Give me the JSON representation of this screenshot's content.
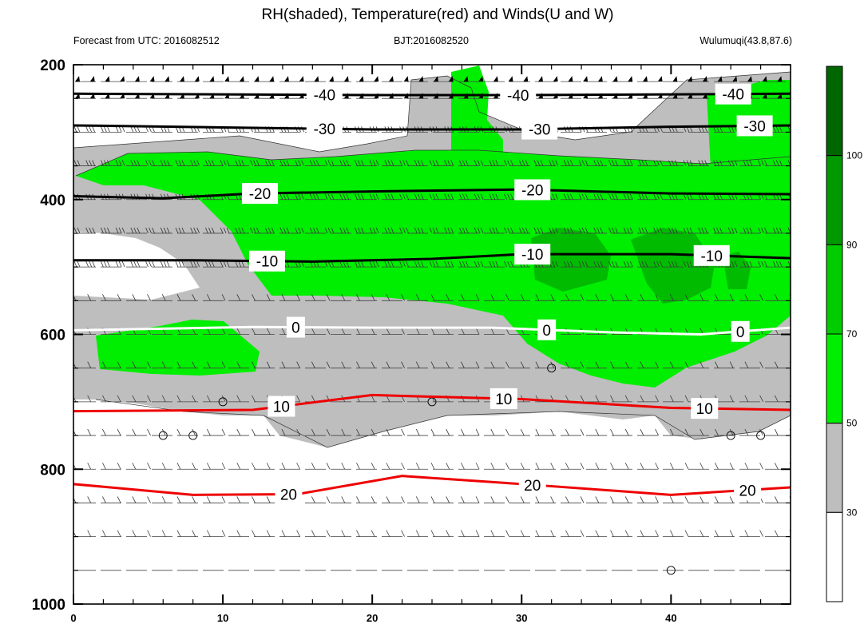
{
  "chart_data": {
    "type": "contour",
    "title": "RH(shaded), Temperature(red) and Winds(U and W)",
    "subtitle_left": "Forecast from UTC: 2016082512",
    "subtitle_center": "BJT:2016082520",
    "subtitle_right": "Wulumuqi(43.8,87.6)",
    "xlim": [
      0,
      48
    ],
    "ylim": [
      1000,
      200
    ],
    "x_ticks": [
      "0",
      "10",
      "20",
      "30",
      "40"
    ],
    "y_ticks": [
      "200",
      "400",
      "600",
      "800",
      "1000"
    ],
    "colorbar": {
      "levels": [
        "30",
        "50",
        "70",
        "90",
        "100"
      ],
      "colors": [
        "#ffffff",
        "#bebebe",
        "#00ef00",
        "#00cc00",
        "#009900",
        "#006600"
      ]
    },
    "temperature_contours": [
      {
        "label": "-40",
        "color": "#000000",
        "points": [
          [
            0,
            243
          ],
          [
            10,
            244
          ],
          [
            20,
            245
          ],
          [
            30,
            245
          ],
          [
            40,
            244
          ],
          [
            48,
            243
          ]
        ]
      },
      {
        "label": "-30",
        "color": "#000000",
        "points": [
          [
            0,
            290
          ],
          [
            10,
            293
          ],
          [
            20,
            296
          ],
          [
            30,
            296
          ],
          [
            40,
            292
          ],
          [
            48,
            290
          ]
        ]
      },
      {
        "label": "-20",
        "color": "#000000",
        "points": [
          [
            0,
            395
          ],
          [
            6,
            398
          ],
          [
            12,
            391
          ],
          [
            20,
            388
          ],
          [
            30,
            385
          ],
          [
            40,
            391
          ],
          [
            48,
            392
          ]
        ]
      },
      {
        "label": "-10",
        "color": "#000000",
        "points": [
          [
            0,
            490
          ],
          [
            8,
            490
          ],
          [
            16,
            492
          ],
          [
            24,
            488
          ],
          [
            30,
            481
          ],
          [
            40,
            481
          ],
          [
            48,
            487
          ]
        ]
      },
      {
        "label": "0",
        "color": "#ffffff",
        "points": [
          [
            0,
            594
          ],
          [
            12,
            589
          ],
          [
            20,
            590
          ],
          [
            28,
            590
          ],
          [
            36,
            597
          ],
          [
            42,
            600
          ],
          [
            48,
            590
          ]
        ]
      },
      {
        "label": "10",
        "color": "#ee0000",
        "points": [
          [
            0,
            714
          ],
          [
            12,
            712
          ],
          [
            20,
            690
          ],
          [
            30,
            696
          ],
          [
            40,
            709
          ],
          [
            48,
            712
          ]
        ]
      },
      {
        "label": "20",
        "color": "#ee0000",
        "points": [
          [
            0,
            822
          ],
          [
            8,
            838
          ],
          [
            15,
            837
          ],
          [
            22,
            810
          ],
          [
            30,
            822
          ],
          [
            40,
            838
          ],
          [
            48,
            827
          ]
        ]
      }
    ],
    "wind_barb_levels": [
      225,
      250,
      300,
      350,
      400,
      450,
      500,
      550,
      600,
      650,
      700,
      750,
      800,
      850,
      900,
      950
    ],
    "wind_barb_times": [
      0,
      1,
      2,
      3,
      4,
      5,
      6,
      7,
      8,
      9,
      10,
      11,
      12,
      13,
      14,
      15,
      16,
      17,
      18,
      19,
      20,
      21,
      22,
      23,
      24,
      25,
      26,
      27,
      28,
      29,
      30,
      31,
      32,
      33,
      34,
      35,
      36,
      37,
      38,
      39,
      40,
      41,
      42,
      43,
      44,
      45,
      46,
      47,
      48
    ],
    "calm_wind_points": [
      [
        10,
        700
      ],
      [
        24,
        700
      ],
      [
        6,
        750
      ],
      [
        8,
        750
      ],
      [
        44,
        750
      ],
      [
        46,
        750
      ],
      [
        32,
        650
      ],
      [
        40,
        950
      ]
    ]
  }
}
